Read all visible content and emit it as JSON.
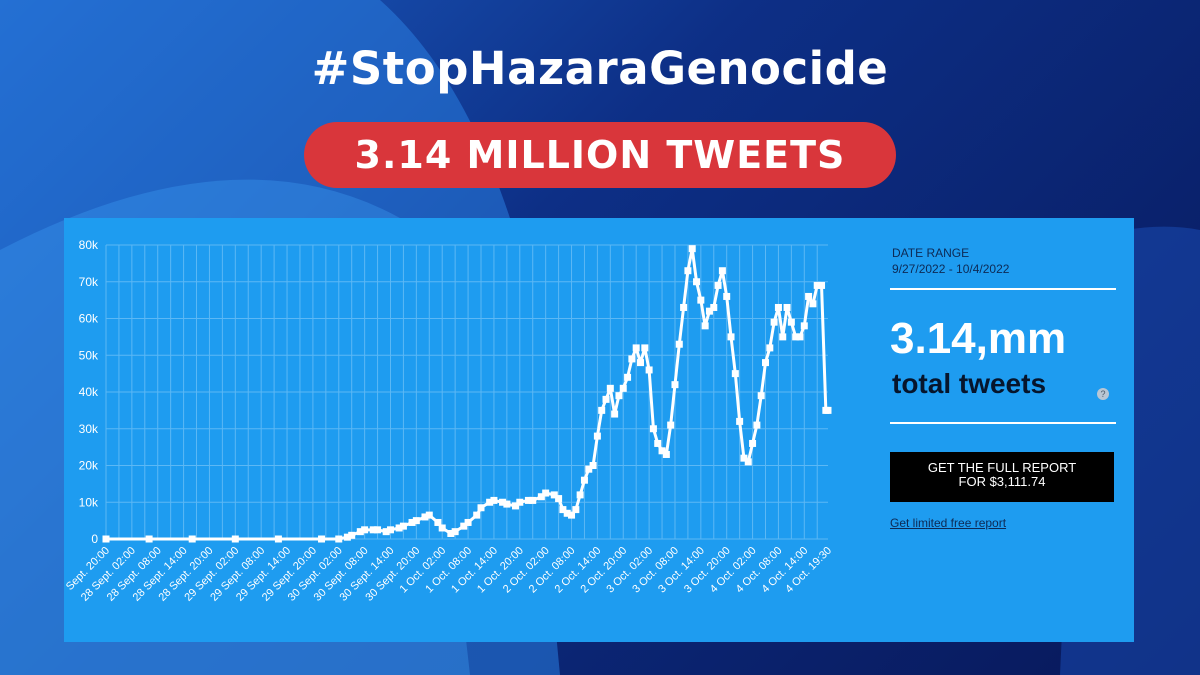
{
  "headline": {
    "hashtag": "#StopHazaraGenocide",
    "banner": "3.14 MILLION TWEETS"
  },
  "sidebar": {
    "date_range_label": "DATE RANGE",
    "date_range_value": "9/27/2022 - 10/4/2022",
    "total_value": "3.14,mm",
    "total_label": "total tweets",
    "help_glyph": "?",
    "report_button_line1": "GET THE FULL REPORT",
    "report_button_line2": "FOR $3,111.74",
    "free_report_link": "Get limited free report"
  },
  "colors": {
    "background": "#0d2f86",
    "banner": "#d9363b",
    "panel": "#1e9cf0",
    "line": "#ffffff"
  },
  "chart_data": {
    "type": "line",
    "y_ticks": [
      "0",
      "10k",
      "20k",
      "30k",
      "40k",
      "50k",
      "60k",
      "70k",
      "80k"
    ],
    "ylim": [
      0,
      80000
    ],
    "grid": true,
    "x_tick_labels": [
      "Sept. 20:00",
      "28 Sept. 02:00",
      "28 Sept. 08:00",
      "28 Sept. 14:00",
      "28 Sept. 20:00",
      "29 Sept. 02:00",
      "29 Sept. 08:00",
      "29 Sept. 14:00",
      "29 Sept. 20:00",
      "30 Sept. 02:00",
      "30 Sept. 08:00",
      "30 Sept. 14:00",
      "30 Sept. 20:00",
      "1 Oct. 02:00",
      "1 Oct. 08:00",
      "1 Oct. 14:00",
      "1 Oct. 20:00",
      "2 Oct. 02:00",
      "2 Oct. 08:00",
      "2 Oct. 14:00",
      "2 Oct. 20:00",
      "3 Oct. 02:00",
      "3 Oct. 08:00",
      "3 Oct. 14:00",
      "3 Oct. 20:00",
      "4 Oct. 02:00",
      "4 Oct. 08:00",
      "4 Oct. 14:00",
      "4 Oct. 19:30"
    ],
    "x_tick_positions": [
      0,
      6,
      12,
      18,
      24,
      30,
      36,
      42,
      48,
      54,
      60,
      66,
      72,
      78,
      84,
      90,
      96,
      102,
      108,
      114,
      120,
      126,
      132,
      138,
      144,
      150,
      156,
      162,
      167.5
    ],
    "series": [
      {
        "x": [
          0,
          10,
          20,
          30,
          40,
          50,
          54,
          56,
          57,
          59,
          60,
          62,
          63,
          65,
          66,
          68,
          69,
          71,
          72,
          74,
          75,
          77,
          78,
          80,
          81,
          83,
          84,
          86,
          87,
          89,
          90,
          92,
          93,
          95,
          96,
          98,
          99,
          101,
          102,
          104,
          105,
          106,
          107,
          108,
          109,
          110,
          111,
          112,
          113,
          114,
          115,
          116,
          117,
          118,
          119,
          120,
          121,
          122,
          123,
          124,
          125,
          126,
          127,
          128,
          129,
          130,
          131,
          132,
          133,
          134,
          135,
          136,
          137,
          138,
          139,
          140,
          141,
          142,
          143,
          144,
          145,
          146,
          147,
          148,
          149,
          150,
          151,
          152,
          153,
          154,
          155,
          156,
          157,
          158,
          159,
          160,
          161,
          162,
          163,
          164,
          165,
          166,
          167,
          167.5
        ],
        "y": [
          0,
          0,
          0,
          0,
          0,
          0,
          0,
          500,
          1000,
          2000,
          2500,
          2500,
          2500,
          2000,
          2500,
          3000,
          3500,
          4500,
          5000,
          6000,
          6500,
          4500,
          3000,
          1500,
          2000,
          3500,
          4500,
          6500,
          8500,
          10000,
          10500,
          10000,
          9500,
          9000,
          10000,
          10500,
          10500,
          11500,
          12500,
          12000,
          11000,
          8000,
          7000,
          6500,
          8000,
          12000,
          16000,
          19000,
          20000,
          28000,
          35000,
          38000,
          41000,
          34000,
          39000,
          41000,
          44000,
          49000,
          52000,
          48000,
          52000,
          46000,
          30000,
          26000,
          24000,
          23000,
          31000,
          42000,
          53000,
          63000,
          73000,
          79000,
          70000,
          65000,
          58000,
          62000,
          63000,
          69000,
          73000,
          66000,
          55000,
          45000,
          32000,
          22000,
          21000,
          26000,
          31000,
          39000,
          48000,
          52000,
          59000,
          63000,
          55000,
          63000,
          59000,
          55000,
          55000,
          58000,
          66000,
          64000,
          69000,
          69000,
          35000,
          35000
        ]
      }
    ]
  }
}
